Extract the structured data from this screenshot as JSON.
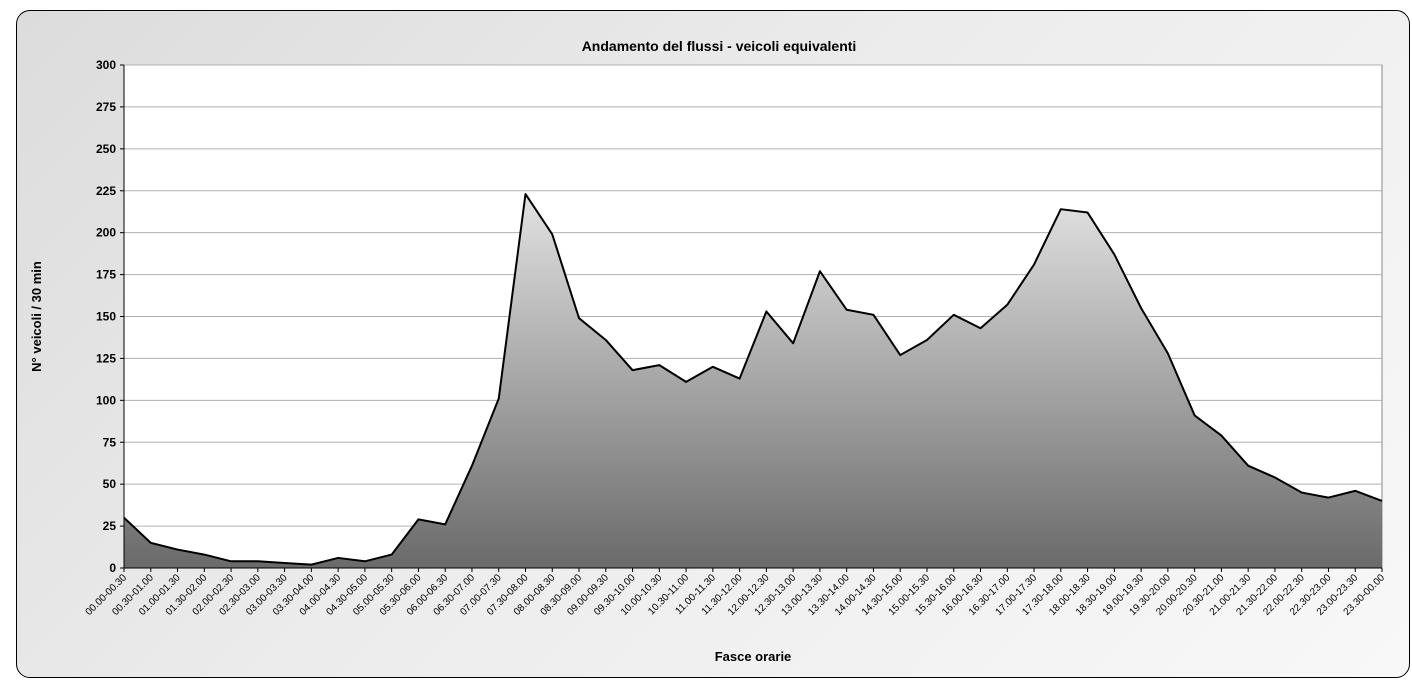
{
  "chart_data": {
    "type": "area",
    "title": "Andamento del flussi - veicoli equivalenti",
    "xlabel": "Fasce orarie",
    "ylabel": "N° veicoli / 30 min",
    "ylim": [
      0,
      300
    ],
    "yticks": [
      "0",
      "25",
      "50",
      "75",
      "100",
      "125",
      "150",
      "175",
      "200",
      "225",
      "250",
      "275",
      "300"
    ],
    "grid": true,
    "legend": "none",
    "fill_colors": {
      "top": "#e2e2e2",
      "bottom": "#6a6a6a"
    },
    "categories": [
      "00.00-00.30",
      "00.30-01.00",
      "01.00-01.30",
      "01.30-02.00",
      "02.00-02.30",
      "02.30-03.00",
      "03.00-03.30",
      "03.30-04.00",
      "04.00-04.30",
      "04.30-05.00",
      "05.00-05.30",
      "05.30-06.00",
      "06.00-06.30",
      "06.30-07.00",
      "07.00-07.30",
      "07.30-08.00",
      "08.00-08.30",
      "08.30-09.00",
      "09.00-09.30",
      "09.30-10.00",
      "10.00-10.30",
      "10.30-11.00",
      "11.00-11.30",
      "11.30-12.00",
      "12.00-12.30",
      "12.30-13.00",
      "13.00-13.30",
      "13.30-14.00",
      "14.00-14.30",
      "14.30-15.00",
      "15.00-15.30",
      "15.30-16.00",
      "16.00-16.30",
      "16.30-17.00",
      "17.00-17.30",
      "17.30-18.00",
      "18.00-18.30",
      "18.30-19.00",
      "19.00-19.30",
      "19.30-20.00",
      "20.00-20.30",
      "20.30-21.00",
      "21.00-21.30",
      "21.30-22.00",
      "22.00-22.30",
      "22.30-23.00",
      "23.00-23.30",
      "23.30-00.00"
    ],
    "values": [
      30,
      15,
      11,
      8,
      4,
      4,
      3,
      2,
      6,
      4,
      8,
      29,
      26,
      61,
      101,
      223,
      199,
      149,
      136,
      118,
      121,
      111,
      120,
      113,
      153,
      134,
      177,
      154,
      151,
      127,
      136,
      151,
      143,
      157,
      181,
      214,
      212,
      187,
      155,
      128,
      91,
      79,
      61,
      54,
      45,
      42,
      46,
      40
    ]
  }
}
